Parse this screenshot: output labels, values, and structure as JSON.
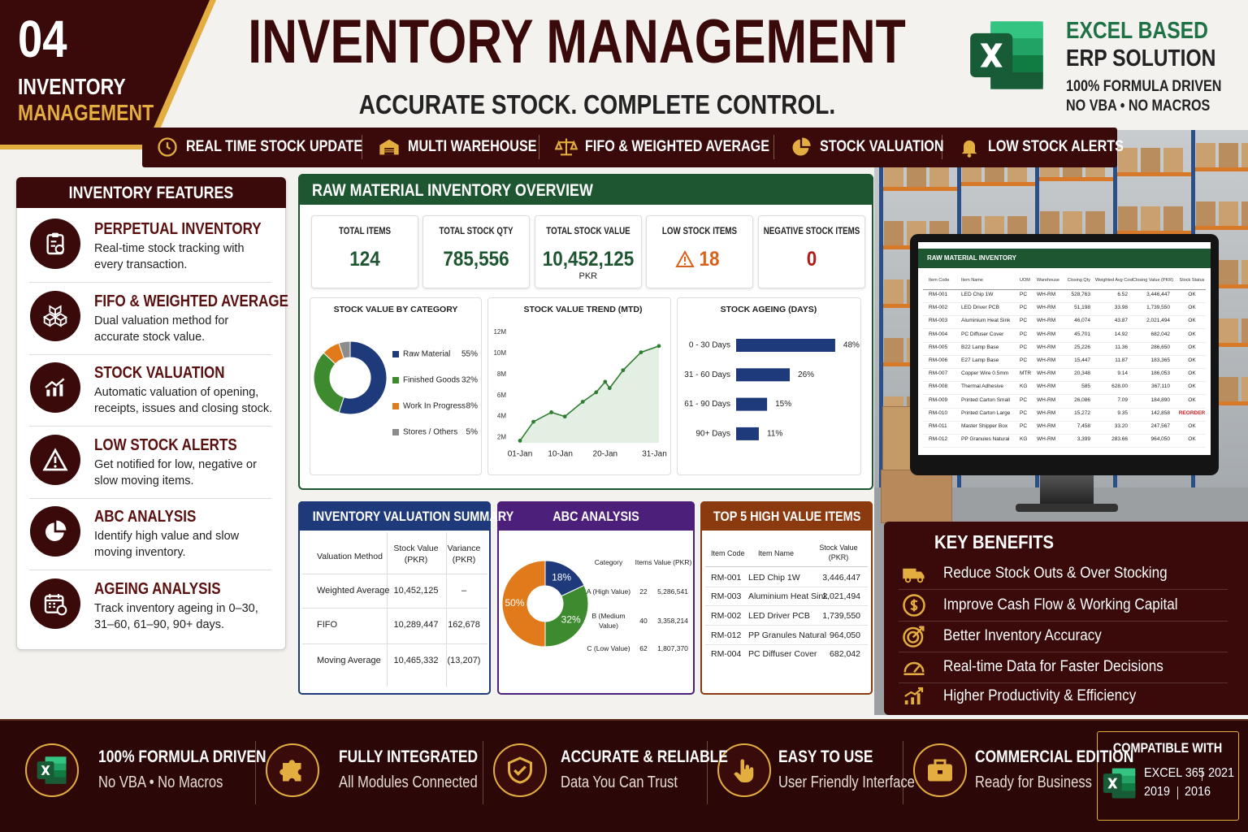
{
  "badge": {
    "number": "04",
    "line1": "INVENTORY",
    "line2": "MANAGEMENT"
  },
  "header": {
    "title": "INVENTORY MANAGEMENT",
    "subtitle": "ACCURATE STOCK. COMPLETE CONTROL.",
    "brand": {
      "line1": "EXCEL BASED",
      "line2": "ERP SOLUTION",
      "line3": "100% FORMULA DRIVEN",
      "line4": "NO VBA • NO MACROS"
    }
  },
  "ribbon": [
    "REAL TIME STOCK UPDATE",
    "MULTI WAREHOUSE",
    "FIFO & WEIGHTED AVERAGE",
    "STOCK VALUATION",
    "LOW STOCK ALERTS"
  ],
  "features": {
    "title": "INVENTORY FEATURES",
    "items": [
      {
        "title": "PERPETUAL INVENTORY",
        "text": "Real-time stock tracking with every transaction."
      },
      {
        "title": "FIFO & WEIGHTED AVERAGE",
        "text": "Dual valuation method for accurate stock value."
      },
      {
        "title": "STOCK VALUATION",
        "text": "Automatic valuation of opening, receipts, issues and closing stock."
      },
      {
        "title": "LOW STOCK ALERTS",
        "text": "Get notified for low, negative or slow moving items."
      },
      {
        "title": "ABC ANALYSIS",
        "text": "Identify high value and slow moving inventory."
      },
      {
        "title": "AGEING ANALYSIS",
        "text": "Track inventory ageing in 0–30, 31–60, 61–90, 90+ days."
      }
    ]
  },
  "overview": {
    "title": "RAW MATERIAL INVENTORY OVERVIEW",
    "kpis": [
      {
        "label": "TOTAL ITEMS",
        "value": "124",
        "color": "#1e5631"
      },
      {
        "label": "TOTAL STOCK QTY",
        "value": "785,556",
        "color": "#1e5631"
      },
      {
        "label": "TOTAL STOCK VALUE",
        "value": "10,452,125",
        "unit": "PKR",
        "color": "#1e5631"
      },
      {
        "label": "LOW STOCK ITEMS",
        "value": "18",
        "color": "#d9621a"
      },
      {
        "label": "NEGATIVE STOCK ITEMS",
        "value": "0",
        "color": "#b01c1c"
      }
    ]
  },
  "chart_data": [
    {
      "type": "donut",
      "title": "STOCK VALUE BY CATEGORY",
      "categories": [
        "Raw Material",
        "Finished Goods",
        "Work In Progress",
        "Stores / Others"
      ],
      "values": [
        55,
        32,
        8,
        5
      ],
      "value_labels": [
        "55%",
        "32%",
        "8%",
        "5%"
      ],
      "colors": [
        "#1f3a7a",
        "#3e8b2f",
        "#e07a1b",
        "#8c8c8c"
      ]
    },
    {
      "type": "line",
      "title": "STOCK VALUE TREND (MTD)",
      "x": [
        1,
        4,
        8,
        11,
        15,
        18,
        20,
        21,
        24,
        28,
        32
      ],
      "values": [
        1.7,
        3.5,
        4.4,
        4.0,
        5.4,
        6.3,
        7.3,
        6.7,
        8.4,
        10.1,
        10.7
      ],
      "xlim": [
        1,
        32
      ],
      "xticks": [
        {
          "value": 1,
          "label": "01-Jan"
        },
        {
          "value": 10,
          "label": "10-Jan"
        },
        {
          "value": 20,
          "label": "20-Jan"
        },
        {
          "value": 31,
          "label": "31-Jan"
        }
      ],
      "ylim": [
        1.5,
        12
      ],
      "yticks": [
        {
          "value": 2,
          "label": "2M"
        },
        {
          "value": 4,
          "label": "4M"
        },
        {
          "value": 6,
          "label": "6M"
        },
        {
          "value": 8,
          "label": "8M"
        },
        {
          "value": 10,
          "label": "10M"
        },
        {
          "value": 12,
          "label": "12M"
        }
      ],
      "color": "#2f7d32",
      "area_color": "#e4efe3"
    },
    {
      "type": "hbar",
      "title": "STOCK AGEING (DAYS)",
      "categories": [
        "0 - 30 Days",
        "31 - 60 Days",
        "61 - 90 Days",
        "90+ Days"
      ],
      "values": [
        48,
        26,
        15,
        11
      ],
      "value_labels": [
        "48%",
        "26%",
        "15%",
        "11%"
      ],
      "color": "#1f3a7a"
    },
    {
      "type": "donut",
      "values": [
        18,
        32,
        50
      ],
      "value_labels": [
        "18%",
        "32%",
        "50%"
      ],
      "colors": [
        "#1f3a7a",
        "#3e8b2f",
        "#e07a1b"
      ]
    }
  ],
  "valuation": {
    "title": "INVENTORY VALUATION SUMMARY",
    "columns": [
      "Valuation Method",
      "Stock Value (PKR)",
      "Variance (PKR)"
    ],
    "rows": [
      [
        "Weighted Average",
        "10,452,125",
        "–"
      ],
      [
        "FIFO",
        "10,289,447",
        "162,678"
      ],
      [
        "Moving Average",
        "10,465,332",
        "(13,207)"
      ]
    ]
  },
  "abc": {
    "title": "ABC ANALYSIS",
    "columns": [
      "Category",
      "Items",
      "Value (PKR)"
    ],
    "rows": [
      [
        "A (High Value)",
        "22",
        "5,286,541"
      ],
      [
        "B (Medium Value)",
        "40",
        "3,358,214"
      ],
      [
        "C (Low Value)",
        "62",
        "1,807,370"
      ]
    ]
  },
  "top5": {
    "title": "TOP 5 HIGH VALUE ITEMS",
    "columns": [
      "Item Code",
      "Item Name",
      "Stock Value (PKR)"
    ],
    "rows": [
      [
        "RM-001",
        "LED Chip 1W",
        "3,446,447"
      ],
      [
        "RM-003",
        "Aluminium Heat Sink",
        "2,021,494"
      ],
      [
        "RM-002",
        "LED Driver PCB",
        "1,739,550"
      ],
      [
        "RM-012",
        "PP Granules Natural",
        "964,050"
      ],
      [
        "RM-004",
        "PC Diffuser Cover",
        "682,042"
      ]
    ]
  },
  "monitor": {
    "title": "RAW MATERIAL INVENTORY",
    "columns": [
      "Item Code",
      "Item Name",
      "UOM",
      "Warehouse",
      "Closing Qty",
      "Weighted Avg Cost",
      "Closing Value (PKR)",
      "Stock Status"
    ],
    "rows": [
      [
        "RM-001",
        "LED Chip 1W",
        "PC",
        "WH-RM",
        "528,763",
        "6.52",
        "3,446,447",
        "OK"
      ],
      [
        "RM-002",
        "LED Driver PCB",
        "PC",
        "WH-RM",
        "51,198",
        "33.98",
        "1,739,550",
        "OK"
      ],
      [
        "RM-003",
        "Aluminium Heat Sink",
        "PC",
        "WH-RM",
        "46,074",
        "43.87",
        "2,021,494",
        "OK"
      ],
      [
        "RM-004",
        "PC Diffuser Cover",
        "PC",
        "WH-RM",
        "45,701",
        "14.92",
        "682,042",
        "OK"
      ],
      [
        "RM-005",
        "B22 Lamp Base",
        "PC",
        "WH-RM",
        "25,226",
        "11.36",
        "286,650",
        "OK"
      ],
      [
        "RM-006",
        "E27 Lamp Base",
        "PC",
        "WH-RM",
        "15,447",
        "11.87",
        "183,365",
        "OK"
      ],
      [
        "RM-007",
        "Copper Wire 0.5mm",
        "MTR",
        "WH-RM",
        "20,348",
        "9.14",
        "186,053",
        "OK"
      ],
      [
        "RM-008",
        "Thermal Adhesive",
        "KG",
        "WH-RM",
        "585",
        "628.00",
        "367,110",
        "OK"
      ],
      [
        "RM-009",
        "Printed Carton Small",
        "PC",
        "WH-RM",
        "26,086",
        "7.09",
        "184,890",
        "OK"
      ],
      [
        "RM-010",
        "Printed Carton Large",
        "PC",
        "WH-RM",
        "15,272",
        "9.35",
        "142,858",
        "REORDER"
      ],
      [
        "RM-011",
        "Master Shipper Box",
        "PC",
        "WH-RM",
        "7,458",
        "33.20",
        "247,567",
        "OK"
      ],
      [
        "RM-012",
        "PP Granules Natural",
        "KG",
        "WH-RM",
        "3,399",
        "283.66",
        "964,050",
        "OK"
      ]
    ]
  },
  "benefits": {
    "title": "KEY BENEFITS",
    "items": [
      "Reduce Stock Outs & Over Stocking",
      "Improve Cash Flow & Working Capital",
      "Better Inventory Accuracy",
      "Real-time Data for Faster Decisions",
      "Higher Productivity & Efficiency"
    ]
  },
  "footer": {
    "items": [
      {
        "title": "100% FORMULA DRIVEN",
        "text": "No VBA • No Macros"
      },
      {
        "title": "FULLY INTEGRATED",
        "text": "All Modules Connected"
      },
      {
        "title": "ACCURATE & RELIABLE",
        "text": "Data You Can Trust"
      },
      {
        "title": "EASY TO USE",
        "text": "User Friendly Interface"
      },
      {
        "title": "COMMERCIAL EDITION",
        "text": "Ready for Business"
      }
    ],
    "compat": {
      "title": "COMPATIBLE WITH",
      "versions": [
        "EXCEL 365",
        "2021",
        "2019",
        "2016"
      ]
    }
  }
}
